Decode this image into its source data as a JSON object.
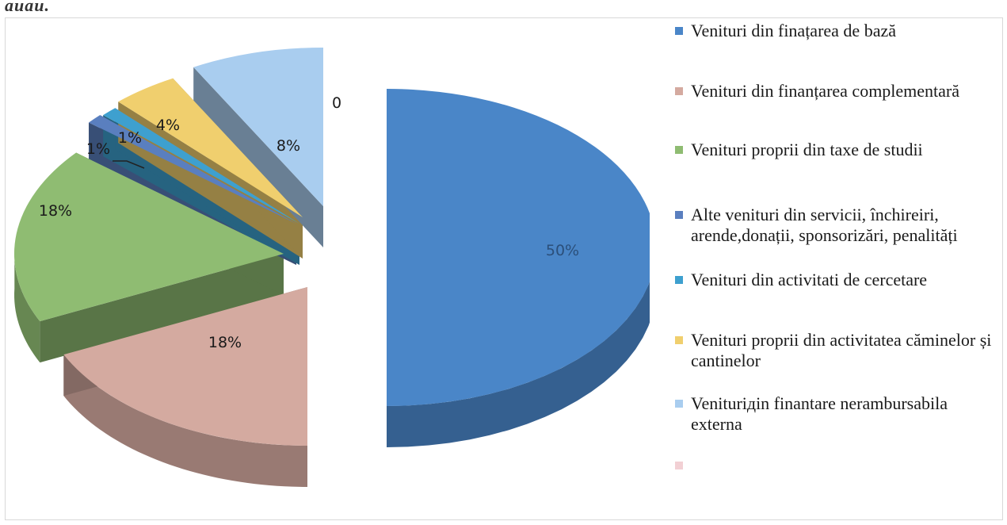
{
  "page": {
    "top_fragment": "auau."
  },
  "chart_data": {
    "type": "pie",
    "slices": [
      {
        "label": "Venituri din finațarea de bază",
        "value": 50,
        "data_label": "50%",
        "color": "#4a86c8"
      },
      {
        "label": "Venituri din finanțarea complementară",
        "value": 18,
        "data_label": "18%",
        "color": "#d4aaa0"
      },
      {
        "label": "Venituri proprii din taxe de studii",
        "value": 18,
        "data_label": "18%",
        "color": "#8fbc72"
      },
      {
        "label": "Alte venituri din servicii, închireiri, arende,donații, sponsorizări, penalități",
        "value": 1,
        "data_label": "1%",
        "color": "#5a7fbf"
      },
      {
        "label": "Venituri din activitati de cercetare",
        "value": 1,
        "data_label": "1%",
        "color": "#3ea0cf"
      },
      {
        "label": " Venituri proprii din activitatea căminelor și cantinelor",
        "value": 4,
        "data_label": "4%",
        "color": "#f0cf6e"
      },
      {
        "label": "Veniturідin finantare nerambursabila externa",
        "value": 8,
        "data_label": "8%",
        "color": "#a9cdef"
      },
      {
        "label": "",
        "value": 0,
        "data_label": "0",
        "color": "#f2d0d4"
      }
    ],
    "legend_position": "right",
    "style": "3d-exploded"
  }
}
